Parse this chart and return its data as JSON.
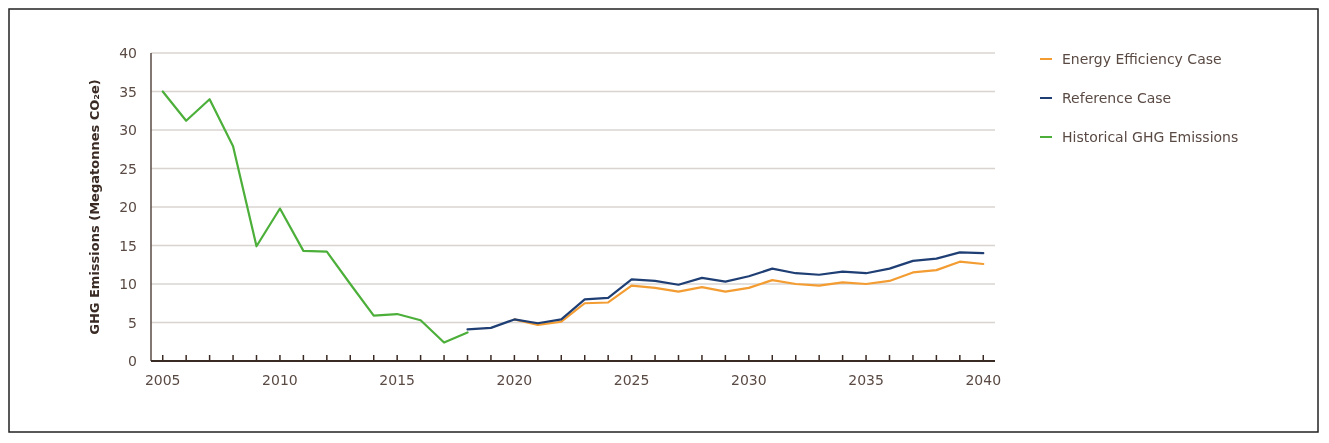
{
  "chart_data": {
    "type": "line",
    "ylabel": "GHG Emissions (Megatonnes CO₂e)",
    "xlim": [
      2004.5,
      2040.5
    ],
    "ylim": [
      0,
      40
    ],
    "yticks": [
      0,
      5,
      10,
      15,
      20,
      25,
      30,
      35,
      40
    ],
    "xticks": [
      2005,
      {
        "value": 2006,
        "label": null
      },
      {
        "value": 2007,
        "label": null
      },
      {
        "value": 2008,
        "label": null
      },
      {
        "value": 2009,
        "label": null
      },
      2010,
      {
        "value": 2011,
        "label": null
      },
      {
        "value": 2012,
        "label": null
      },
      {
        "value": 2013,
        "label": null
      },
      {
        "value": 2014,
        "label": null
      },
      2015,
      {
        "value": 2016,
        "label": null
      },
      {
        "value": 2017,
        "label": null
      },
      {
        "value": 2018,
        "label": null
      },
      {
        "value": 2019,
        "label": null
      },
      2020,
      {
        "value": 2021,
        "label": null
      },
      {
        "value": 2022,
        "label": null
      },
      {
        "value": 2023,
        "label": null
      },
      {
        "value": 2024,
        "label": null
      },
      2025,
      {
        "value": 2026,
        "label": null
      },
      {
        "value": 2027,
        "label": null
      },
      {
        "value": 2028,
        "label": null
      },
      {
        "value": 2029,
        "label": null
      },
      2030,
      {
        "value": 2031,
        "label": null
      },
      {
        "value": 2032,
        "label": null
      },
      {
        "value": 2033,
        "label": null
      },
      {
        "value": 2034,
        "label": null
      },
      2035,
      {
        "value": 2036,
        "label": null
      },
      {
        "value": 2037,
        "label": null
      },
      {
        "value": 2038,
        "label": null
      },
      {
        "value": 2039,
        "label": null
      },
      2040
    ],
    "grid": "y",
    "legend": "top right",
    "marker": "none",
    "line_style": "solid",
    "series": [
      {
        "name": "Energy Efficiency Case",
        "color": "#f39c32",
        "x": [
          2020,
          2021,
          2022,
          2023,
          2024,
          2025,
          2026,
          2027,
          2028,
          2029,
          2030,
          2031,
          2032,
          2033,
          2034,
          2035,
          2036,
          2037,
          2038,
          2039,
          2040
        ],
        "values": [
          5.4,
          4.7,
          5.1,
          7.5,
          7.6,
          9.8,
          9.5,
          9.0,
          9.6,
          9.0,
          9.5,
          10.5,
          10.0,
          9.8,
          10.2,
          10.0,
          10.4,
          11.5,
          11.8,
          12.9,
          12.6
        ]
      },
      {
        "name": "Reference Case",
        "color": "#1f3f74",
        "x": [
          2018,
          2019,
          2020,
          2021,
          2022,
          2023,
          2024,
          2025,
          2026,
          2027,
          2028,
          2029,
          2030,
          2031,
          2032,
          2033,
          2034,
          2035,
          2036,
          2037,
          2038,
          2039,
          2040
        ],
        "values": [
          4.1,
          4.3,
          5.4,
          4.9,
          5.4,
          8.0,
          8.2,
          10.6,
          10.4,
          9.9,
          10.8,
          10.3,
          11.0,
          12.0,
          11.4,
          11.2,
          11.6,
          11.4,
          12.0,
          13.0,
          13.3,
          14.1,
          14.0
        ]
      },
      {
        "name": "Historical GHG Emissions",
        "color": "#4caf3a",
        "x": [
          2005,
          2006,
          2007,
          2008,
          2009,
          2010,
          2011,
          2012,
          2013,
          2014,
          2015,
          2016,
          2017,
          2018
        ],
        "values": [
          35,
          31.2,
          34,
          27.9,
          14.9,
          19.8,
          14.3,
          14.2,
          10,
          5.9,
          6.1,
          5.3,
          2.4,
          3.7
        ]
      }
    ]
  }
}
